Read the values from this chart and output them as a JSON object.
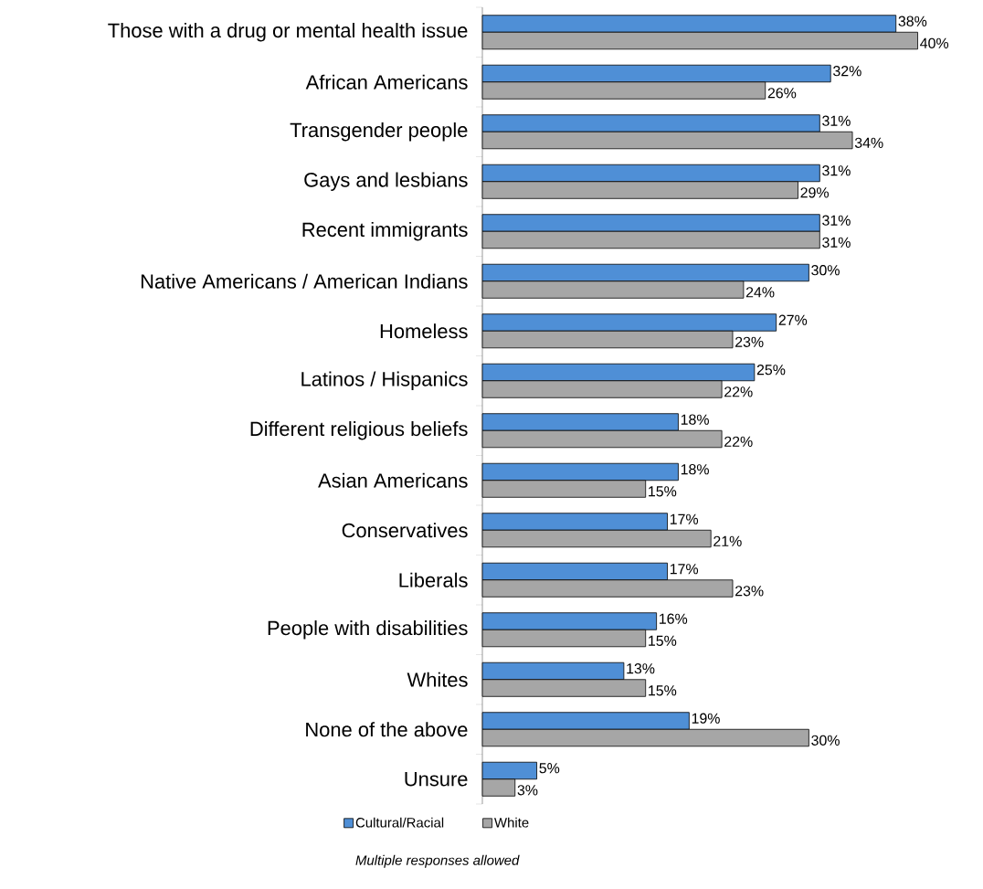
{
  "chart_data": {
    "type": "bar",
    "orientation": "horizontal",
    "categories": [
      "Those with a drug or mental health issue",
      "African Americans",
      "Transgender people",
      "Gays and lesbians",
      "Recent immigrants",
      "Native Americans / American Indians",
      "Homeless",
      "Latinos / Hispanics",
      "Different religious beliefs",
      "Asian Americans",
      "Conservatives",
      "Liberals",
      "People with disabilities",
      "Whites",
      "None of the above",
      "Unsure"
    ],
    "series": [
      {
        "name": "Cultural/Racial",
        "color": "#4f8fd6",
        "values": [
          38,
          32,
          31,
          31,
          31,
          30,
          27,
          25,
          18,
          18,
          17,
          17,
          16,
          13,
          19,
          5
        ],
        "value_labels": [
          "38%",
          "32%",
          "31%",
          "31%",
          "31%",
          "30%",
          "27%",
          "25%",
          "18%",
          "18%",
          "17%",
          "17%",
          "16%",
          "13%",
          "19%",
          "5%"
        ]
      },
      {
        "name": "White",
        "color": "#a6a6a6",
        "values": [
          40,
          26,
          34,
          29,
          31,
          24,
          23,
          22,
          22,
          15,
          21,
          23,
          15,
          15,
          30,
          3
        ],
        "value_labels": [
          "40%",
          "26%",
          "34%",
          "29%",
          "31%",
          "24%",
          "23%",
          "22%",
          "22%",
          "15%",
          "21%",
          "23%",
          "15%",
          "15%",
          "30%",
          "3%"
        ]
      }
    ],
    "legend": "bottom",
    "annotations": [
      "Multiple responses allowed"
    ]
  }
}
